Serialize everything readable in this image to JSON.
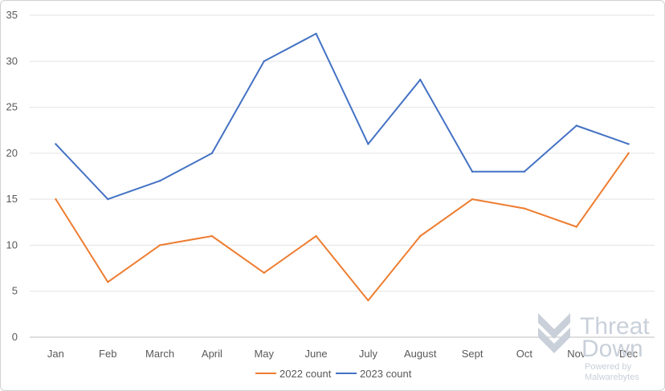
{
  "chart_data": {
    "type": "line",
    "categories": [
      "Jan",
      "Feb",
      "March",
      "April",
      "May",
      "June",
      "July",
      "August",
      "Sept",
      "Oct",
      "Nov",
      "Dec"
    ],
    "series": [
      {
        "name": "2022 count",
        "color": "#ED7D31",
        "values": [
          15,
          6,
          10,
          11,
          7,
          11,
          4,
          11,
          15,
          14,
          12,
          20
        ]
      },
      {
        "name": "2023 count",
        "color": "#4472C4",
        "values": [
          21,
          15,
          17,
          20,
          30,
          33,
          21,
          28,
          18,
          18,
          23,
          21
        ]
      }
    ],
    "ylim": [
      0,
      35
    ],
    "yticks": [
      0,
      5,
      10,
      15,
      20,
      25,
      30,
      35
    ],
    "grid": true,
    "legend_position": "bottom"
  },
  "watermark": {
    "line1": "Threat",
    "line2": "Down",
    "line3": "Powered by",
    "line4": "Malwarebytes",
    "color": "#c9d0da"
  }
}
